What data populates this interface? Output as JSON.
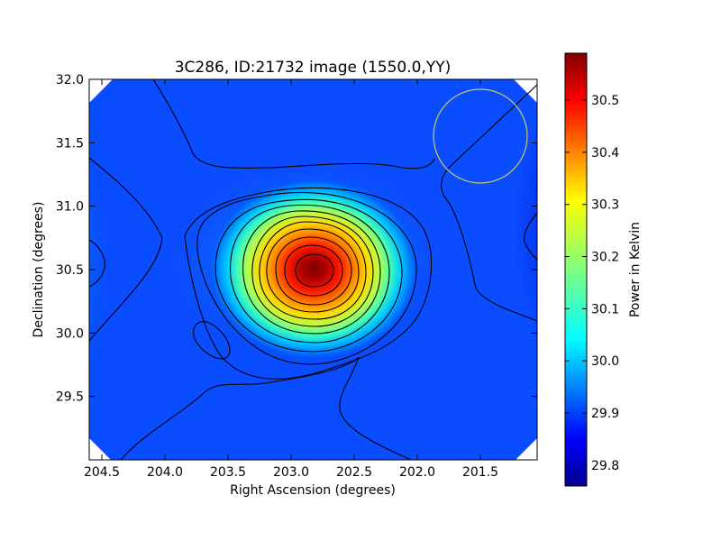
{
  "chart_data": {
    "type": "heatmap",
    "title": "3C286, ID:21732 image (1550.0,YY)",
    "xlabel": "Right Ascension (degrees)",
    "ylabel": "Declination (degrees)",
    "xlim": [
      204.6,
      201.05
    ],
    "ylim": [
      29.0,
      32.0
    ],
    "x_ticks": [
      204.5,
      204.0,
      203.5,
      203.0,
      202.5,
      202.0,
      201.5
    ],
    "x_tick_labels": [
      "204.5",
      "204.0",
      "203.5",
      "203.0",
      "202.5",
      "202.0",
      "201.5"
    ],
    "y_ticks": [
      29.5,
      30.0,
      30.5,
      31.0,
      31.5,
      32.0
    ],
    "y_tick_labels": [
      "29.5",
      "30.0",
      "30.5",
      "31.0",
      "31.5",
      "32.0"
    ],
    "colorbar": {
      "label": "Power in Kelvin",
      "range": [
        29.76,
        30.59
      ],
      "ticks": [
        29.8,
        29.9,
        30.0,
        30.1,
        30.2,
        30.3,
        30.4,
        30.5
      ],
      "tick_labels": [
        "29.8",
        "29.9",
        "30.0",
        "30.1",
        "30.2",
        "30.3",
        "30.4",
        "30.5"
      ],
      "colormap": "jet"
    },
    "peak": {
      "ra": 202.78,
      "dec": 30.5,
      "value": 30.59
    },
    "beam_circle": {
      "ra": 201.5,
      "dec": 31.56,
      "radius_deg": 0.37,
      "color": "#c8c864"
    }
  }
}
